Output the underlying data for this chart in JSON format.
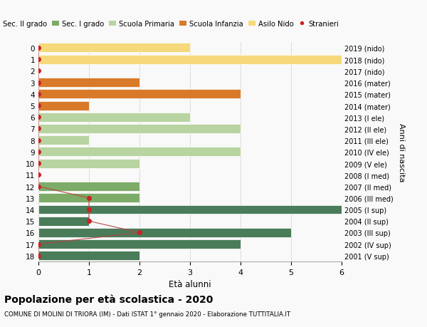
{
  "ages": [
    18,
    17,
    16,
    15,
    14,
    13,
    12,
    11,
    10,
    9,
    8,
    7,
    6,
    5,
    4,
    3,
    2,
    1,
    0
  ],
  "right_labels": [
    "2001 (V sup)",
    "2002 (IV sup)",
    "2003 (III sup)",
    "2004 (II sup)",
    "2005 (I sup)",
    "2006 (III med)",
    "2007 (II med)",
    "2008 (I med)",
    "2009 (V ele)",
    "2010 (IV ele)",
    "2011 (III ele)",
    "2012 (II ele)",
    "2013 (I ele)",
    "2014 (mater)",
    "2015 (mater)",
    "2016 (mater)",
    "2017 (nido)",
    "2018 (nido)",
    "2019 (nido)"
  ],
  "bar_values": [
    2,
    4,
    5,
    1,
    6,
    2,
    2,
    0,
    2,
    4,
    1,
    4,
    3,
    1,
    4,
    2,
    0,
    6,
    3
  ],
  "bar_colors": [
    "#4a7c59",
    "#4a7c59",
    "#4a7c59",
    "#4a7c59",
    "#4a7c59",
    "#7dab68",
    "#7dab68",
    "#7dab68",
    "#b8d4a0",
    "#b8d4a0",
    "#b8d4a0",
    "#b8d4a0",
    "#b8d4a0",
    "#d97a2a",
    "#d97a2a",
    "#d97a2a",
    "#f5d97a",
    "#f5d97a",
    "#f5d97a"
  ],
  "stranieri_x": [
    0,
    0,
    2,
    1,
    1,
    1,
    0,
    0,
    0,
    0,
    0,
    0,
    0,
    0,
    0,
    0,
    0,
    0,
    0
  ],
  "legend_labels": [
    "Sec. II grado",
    "Sec. I grado",
    "Scuola Primaria",
    "Scuola Infanzia",
    "Asilo Nido",
    "Stranieri"
  ],
  "legend_colors": [
    "#4a7c59",
    "#7dab68",
    "#b8d4a0",
    "#d97a2a",
    "#f5d97a",
    "#cc2222"
  ],
  "xlabel": "Età alunni",
  "ylabel_right": "Anni di nascita",
  "xlim": [
    0,
    6
  ],
  "title": "Popolazione per età scolastica - 2020",
  "subtitle": "COMUNE DI MOLINI DI TRIORA (IM) - Dati ISTAT 1° gennaio 2020 - Elaborazione TUTTITALIA.IT",
  "bg_color": "#f9f9f9",
  "grid_color": "#dddddd"
}
